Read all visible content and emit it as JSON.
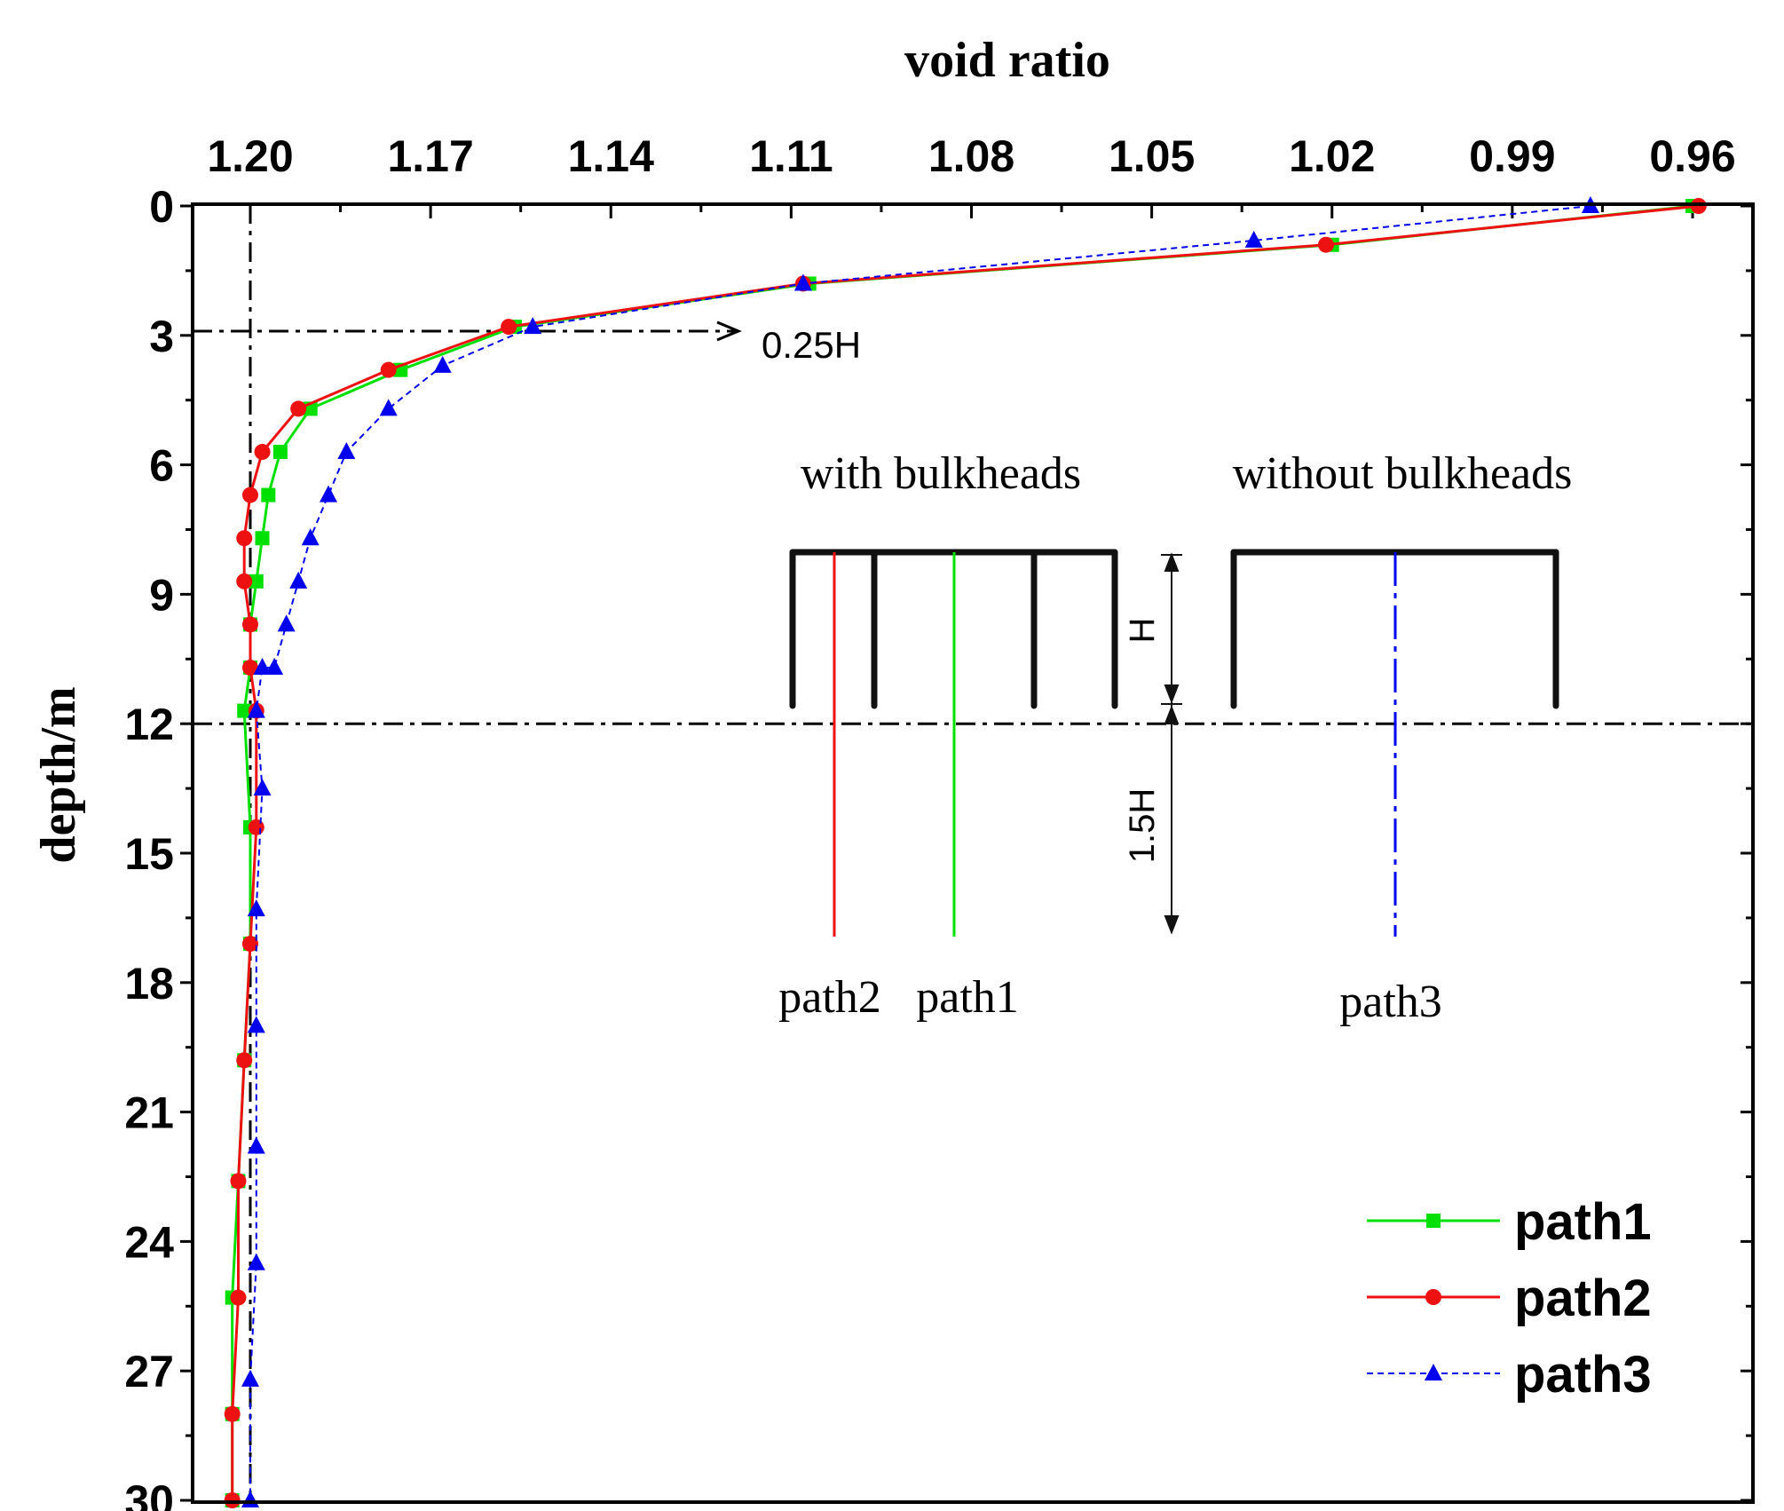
{
  "chart_data": {
    "type": "line",
    "title": "",
    "xlabel": "void ratio",
    "ylabel": "depth/m",
    "x_inverted": true,
    "y_inverted": true,
    "xlim": [
      1.2,
      0.96
    ],
    "ylim": [
      0,
      30
    ],
    "xticks": [
      "1.20",
      "1.17",
      "1.14",
      "1.11",
      "1.08",
      "1.05",
      "1.02",
      "0.99",
      "0.96"
    ],
    "yticks": [
      "0",
      "3",
      "6",
      "9",
      "12",
      "15",
      "18",
      "21",
      "24",
      "27",
      "30"
    ],
    "reference_lines": [
      {
        "orientation": "vertical",
        "x": 1.2,
        "style": "dash-dot"
      },
      {
        "orientation": "horizontal",
        "y": 2.9,
        "style": "dash-dot-arrow",
        "label": "0.25H"
      },
      {
        "orientation": "horizontal",
        "y": 12,
        "style": "dash-dot"
      }
    ],
    "series": [
      {
        "name": "path1",
        "color": "#00e000",
        "marker": "square",
        "line": "solid",
        "points": [
          [
            0.96,
            0.0
          ],
          [
            1.02,
            0.9
          ],
          [
            1.107,
            1.8
          ],
          [
            1.156,
            2.8
          ],
          [
            1.175,
            3.8
          ],
          [
            1.19,
            4.7
          ],
          [
            1.195,
            5.7
          ],
          [
            1.197,
            6.7
          ],
          [
            1.198,
            7.7
          ],
          [
            1.199,
            8.7
          ],
          [
            1.2,
            9.7
          ],
          [
            1.2,
            10.7
          ],
          [
            1.201,
            11.7
          ],
          [
            1.2,
            14.4
          ],
          [
            1.2,
            17.1
          ],
          [
            1.201,
            19.8
          ],
          [
            1.202,
            22.6
          ],
          [
            1.203,
            25.3
          ],
          [
            1.203,
            28.0
          ],
          [
            1.203,
            30.0
          ]
        ]
      },
      {
        "name": "path2",
        "color": "#ee1111",
        "marker": "circle",
        "line": "solid",
        "points": [
          [
            0.959,
            0.0
          ],
          [
            1.021,
            0.9
          ],
          [
            1.108,
            1.8
          ],
          [
            1.157,
            2.8
          ],
          [
            1.177,
            3.8
          ],
          [
            1.192,
            4.7
          ],
          [
            1.198,
            5.7
          ],
          [
            1.2,
            6.7
          ],
          [
            1.201,
            7.7
          ],
          [
            1.201,
            8.7
          ],
          [
            1.2,
            9.7
          ],
          [
            1.2,
            10.7
          ],
          [
            1.199,
            11.7
          ],
          [
            1.199,
            14.4
          ],
          [
            1.2,
            17.1
          ],
          [
            1.201,
            19.8
          ],
          [
            1.202,
            22.6
          ],
          [
            1.202,
            25.3
          ],
          [
            1.203,
            28.0
          ],
          [
            1.203,
            30.0
          ]
        ]
      },
      {
        "name": "path3",
        "color": "#0000ee",
        "marker": "triangle",
        "line": "dashed",
        "points": [
          [
            0.977,
            0.0
          ],
          [
            1.033,
            0.8
          ],
          [
            1.108,
            1.8
          ],
          [
            1.153,
            2.8
          ],
          [
            1.168,
            3.7
          ],
          [
            1.177,
            4.7
          ],
          [
            1.184,
            5.7
          ],
          [
            1.187,
            6.7
          ],
          [
            1.19,
            7.7
          ],
          [
            1.192,
            8.7
          ],
          [
            1.194,
            9.7
          ],
          [
            1.196,
            10.7
          ],
          [
            1.198,
            10.7
          ],
          [
            1.199,
            11.7
          ],
          [
            1.198,
            13.5
          ],
          [
            1.199,
            16.3
          ],
          [
            1.199,
            19.0
          ],
          [
            1.199,
            21.8
          ],
          [
            1.199,
            24.5
          ],
          [
            1.2,
            27.2
          ],
          [
            1.2,
            30.0
          ]
        ]
      }
    ],
    "legend": {
      "position": "bottom-right",
      "entries": [
        "path1",
        "path2",
        "path3"
      ]
    },
    "annotations": [
      "0.25H"
    ],
    "grid": false
  },
  "inset": {
    "with_label": "with bulkheads",
    "without_label": "without bulkheads",
    "h_label": "H",
    "h15_label": "1.5H",
    "path1_label": "path1",
    "path2_label": "path2",
    "path3_label": "path3"
  }
}
